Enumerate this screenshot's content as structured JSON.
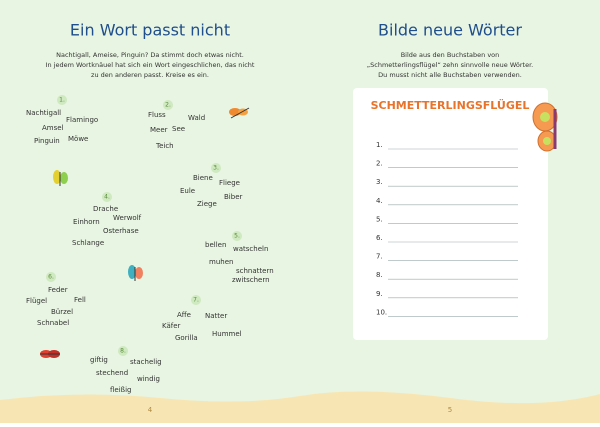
{
  "left_page": {
    "title": "Ein Wort passt nicht",
    "instructions": [
      "Nachtigall, Ameise, Pinguin? Da stimmt doch etwas nicht.",
      "In jedem Wortknäuel hat sich ein Wort eingeschlichen, das nicht",
      "zu den anderen passt. Kreise es ein."
    ],
    "clusters": [
      {
        "number": "1.",
        "words": [
          "Nachtigall",
          "Flamingo",
          "Amsel",
          "Möwe",
          "Pinguin"
        ]
      },
      {
        "number": "2.",
        "words": [
          "Fluss",
          "Wald",
          "Meer",
          "See",
          "Teich"
        ]
      },
      {
        "number": "3.",
        "words": [
          "Biene",
          "Fliege",
          "Eule",
          "Biber",
          "Ziege"
        ]
      },
      {
        "number": "4.",
        "words": [
          "Drache",
          "Werwolf",
          "Einhorn",
          "Osterhase",
          "Schlange"
        ]
      },
      {
        "number": "5.",
        "words": [
          "bellen",
          "watscheln",
          "muhen",
          "schnattern",
          "zwitschern"
        ]
      },
      {
        "number": "6.",
        "words": [
          "Feder",
          "Flügel",
          "Fell",
          "Bürzel",
          "Schnabel"
        ]
      },
      {
        "number": "7.",
        "words": [
          "Affe",
          "Natter",
          "Käfer",
          "Gorilla",
          "Hummel"
        ]
      },
      {
        "number": "8.",
        "words": [
          "giftig",
          "stachelig",
          "stechend",
          "windig",
          "fleißig"
        ]
      }
    ],
    "page_number": "4"
  },
  "right_page": {
    "title": "Bilde neue Wörter",
    "instructions": [
      "Bilde aus den Buchstaben von",
      "„Schmetterlingsflügel“ zehn sinnvolle neue Wörter.",
      "Du musst nicht alle Buchstaben verwenden."
    ],
    "word": "SCHMETTERLINGSFLÜGEL",
    "lines": [
      "1.",
      "2.",
      "3.",
      "4.",
      "5.",
      "6.",
      "7.",
      "8.",
      "9.",
      "10."
    ],
    "page_number": "5"
  }
}
